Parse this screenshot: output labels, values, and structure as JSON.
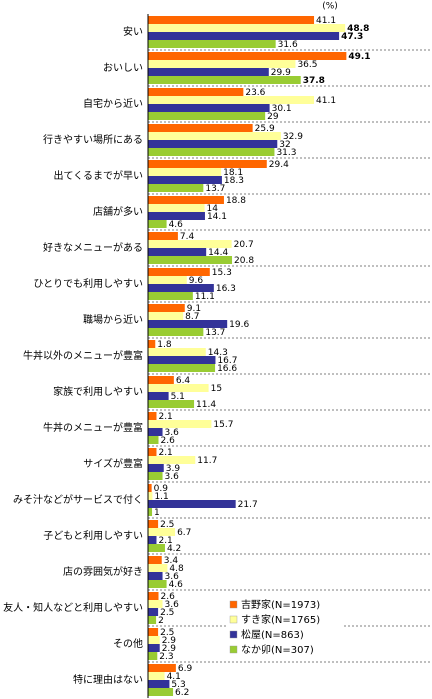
{
  "chart_data": {
    "type": "bar",
    "orientation": "horizontal",
    "unit_label": "(%)",
    "categories": [
      "安い",
      "おいしい",
      "自宅から近い",
      "行きやすい場所にある",
      "出てくるまでが早い",
      "店舗が多い",
      "好きなメニューがある",
      "ひとりでも利用しやすい",
      "職場から近い",
      "牛丼以外のメニューが豊富",
      "家族で利用しやすい",
      "牛丼のメニューが豊富",
      "サイズが豊富",
      "みそ汁などがサービスで付く",
      "子どもと利用しやすい",
      "店の雰囲気が好き",
      "友人・知人などと利用しやすい",
      "その他",
      "特に理由はない"
    ],
    "series": [
      {
        "name": "吉野家(N=1973)",
        "color": "#ff6600",
        "values": [
          41.1,
          49.1,
          23.6,
          25.9,
          29.4,
          18.8,
          7.4,
          15.3,
          9.1,
          1.8,
          6.4,
          2.1,
          2.1,
          0.9,
          2.5,
          3.4,
          2.6,
          2.5,
          6.9
        ]
      },
      {
        "name": "すき家(N=1765)",
        "color": "#ffff99",
        "values": [
          48.8,
          36.5,
          41.1,
          32.9,
          18.1,
          14.0,
          20.7,
          9.6,
          8.7,
          14.3,
          15.0,
          15.7,
          11.7,
          1.1,
          6.7,
          4.8,
          3.6,
          2.9,
          4.1
        ]
      },
      {
        "name": "松屋(N=863)",
        "color": "#333399",
        "values": [
          47.3,
          29.9,
          30.1,
          32.0,
          18.3,
          14.1,
          14.4,
          16.3,
          19.6,
          16.7,
          5.1,
          3.6,
          3.9,
          21.7,
          2.1,
          3.6,
          2.5,
          2.9,
          5.3
        ]
      },
      {
        "name": "なか卯(N=307)",
        "color": "#99cc33",
        "values": [
          31.6,
          37.8,
          29.0,
          31.3,
          13.7,
          4.6,
          20.8,
          11.1,
          13.7,
          16.6,
          11.4,
          2.6,
          3.6,
          1.0,
          4.2,
          4.6,
          2.0,
          2.3,
          6.2
        ]
      }
    ],
    "xlim": [
      0,
      50
    ]
  }
}
